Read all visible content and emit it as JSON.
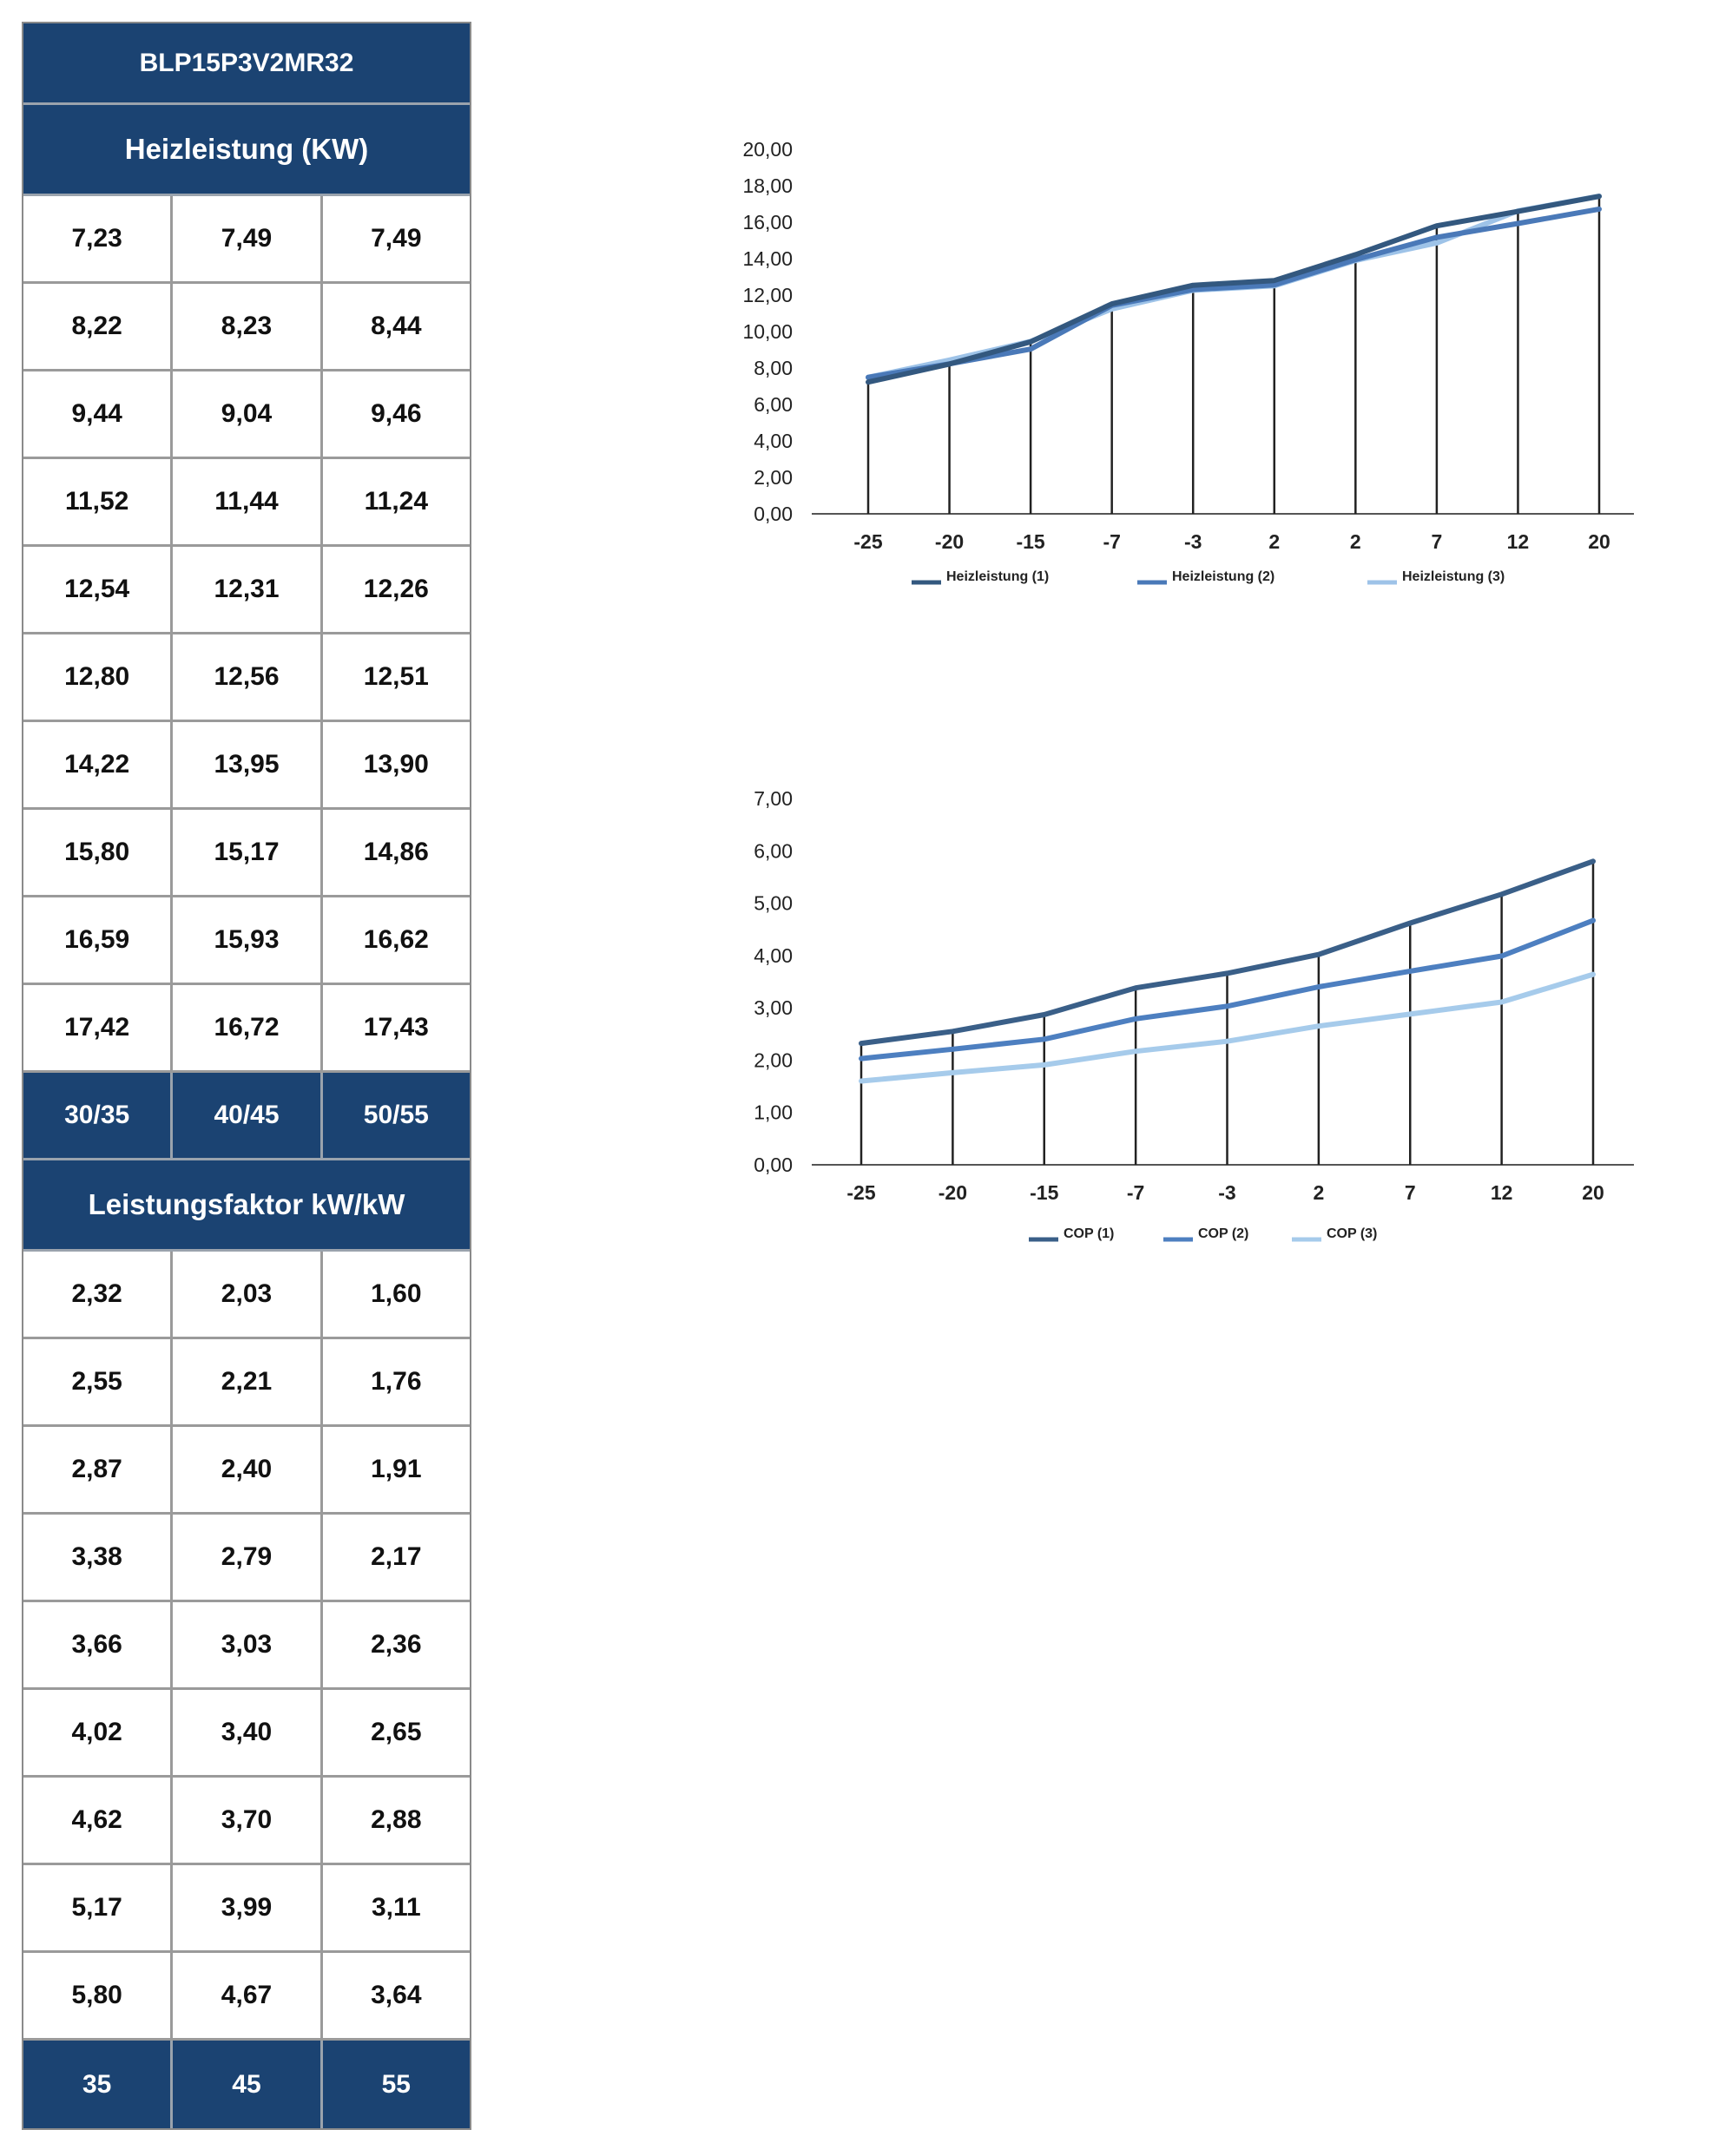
{
  "table": {
    "model": "BLP15P3V2MR32",
    "heiz_title": "Heizleistung (KW)",
    "heiz_rows": [
      [
        "7,23",
        "7,49",
        "7,49"
      ],
      [
        "8,22",
        "8,23",
        "8,44"
      ],
      [
        "9,44",
        "9,04",
        "9,46"
      ],
      [
        "11,52",
        "11,44",
        "11,24"
      ],
      [
        "12,54",
        "12,31",
        "12,26"
      ],
      [
        "12,80",
        "12,56",
        "12,51"
      ],
      [
        "14,22",
        "13,95",
        "13,90"
      ],
      [
        "15,80",
        "15,17",
        "14,86"
      ],
      [
        "16,59",
        "15,93",
        "16,62"
      ],
      [
        "17,42",
        "16,72",
        "17,43"
      ]
    ],
    "heiz_temps": [
      "30/35",
      "40/45",
      "50/55"
    ],
    "cop_title": "Leistungsfaktor kW/kW",
    "cop_rows": [
      [
        "2,32",
        "2,03",
        "1,60"
      ],
      [
        "2,55",
        "2,21",
        "1,76"
      ],
      [
        "2,87",
        "2,40",
        "1,91"
      ],
      [
        "3,38",
        "2,79",
        "2,17"
      ],
      [
        "3,66",
        "3,03",
        "2,36"
      ],
      [
        "4,02",
        "3,40",
        "2,65"
      ],
      [
        "4,62",
        "3,70",
        "2,88"
      ],
      [
        "5,17",
        "3,99",
        "3,11"
      ],
      [
        "5,80",
        "4,67",
        "3,64"
      ]
    ],
    "cop_temps": [
      "35",
      "45",
      "55"
    ]
  },
  "chart_data": [
    {
      "type": "line",
      "categories": [
        "-25",
        "-20",
        "-15",
        "-7",
        "-3",
        "2",
        "2",
        "7",
        "12",
        "20"
      ],
      "ylim": [
        0,
        20
      ],
      "yticks": [
        "0,00",
        "2,00",
        "4,00",
        "6,00",
        "8,00",
        "10,00",
        "12,00",
        "14,00",
        "16,00",
        "18,00",
        "20,00"
      ],
      "grid": "vertical drop lines",
      "legend_position": "bottom",
      "series": [
        {
          "name": "Heizleistung (1)",
          "color": "#33587f",
          "values": [
            7.23,
            8.22,
            9.44,
            11.52,
            12.54,
            12.8,
            14.22,
            15.8,
            16.59,
            17.42
          ]
        },
        {
          "name": "Heizleistung (2)",
          "color": "#4a79b8",
          "values": [
            7.49,
            8.23,
            9.04,
            11.44,
            12.31,
            12.56,
            13.95,
            15.17,
            15.93,
            16.72
          ]
        },
        {
          "name": "Heizleistung (3)",
          "color": "#9ec3e8",
          "values": [
            7.49,
            8.44,
            9.46,
            11.24,
            12.26,
            12.51,
            13.9,
            14.86,
            16.62,
            17.43
          ]
        }
      ]
    },
    {
      "type": "line",
      "categories": [
        "-25",
        "-20",
        "-15",
        "-7",
        "-3",
        "2",
        "7",
        "12",
        "20"
      ],
      "ylim": [
        0,
        7
      ],
      "yticks": [
        "0,00",
        "1,00",
        "2,00",
        "3,00",
        "4,00",
        "5,00",
        "6,00",
        "7,00"
      ],
      "grid": "vertical drop lines",
      "legend_position": "bottom",
      "series": [
        {
          "name": "COP (1)",
          "color": "#3a5f88",
          "values": [
            2.32,
            2.55,
            2.87,
            3.38,
            3.66,
            4.02,
            4.62,
            5.17,
            5.8
          ]
        },
        {
          "name": "COP (2)",
          "color": "#4d7fc0",
          "values": [
            2.03,
            2.21,
            2.4,
            2.79,
            3.03,
            3.4,
            3.7,
            3.99,
            4.67
          ]
        },
        {
          "name": "COP (3)",
          "color": "#a6cbeb",
          "values": [
            1.6,
            1.76,
            1.91,
            2.17,
            2.36,
            2.65,
            2.88,
            3.11,
            3.64
          ]
        }
      ]
    }
  ]
}
